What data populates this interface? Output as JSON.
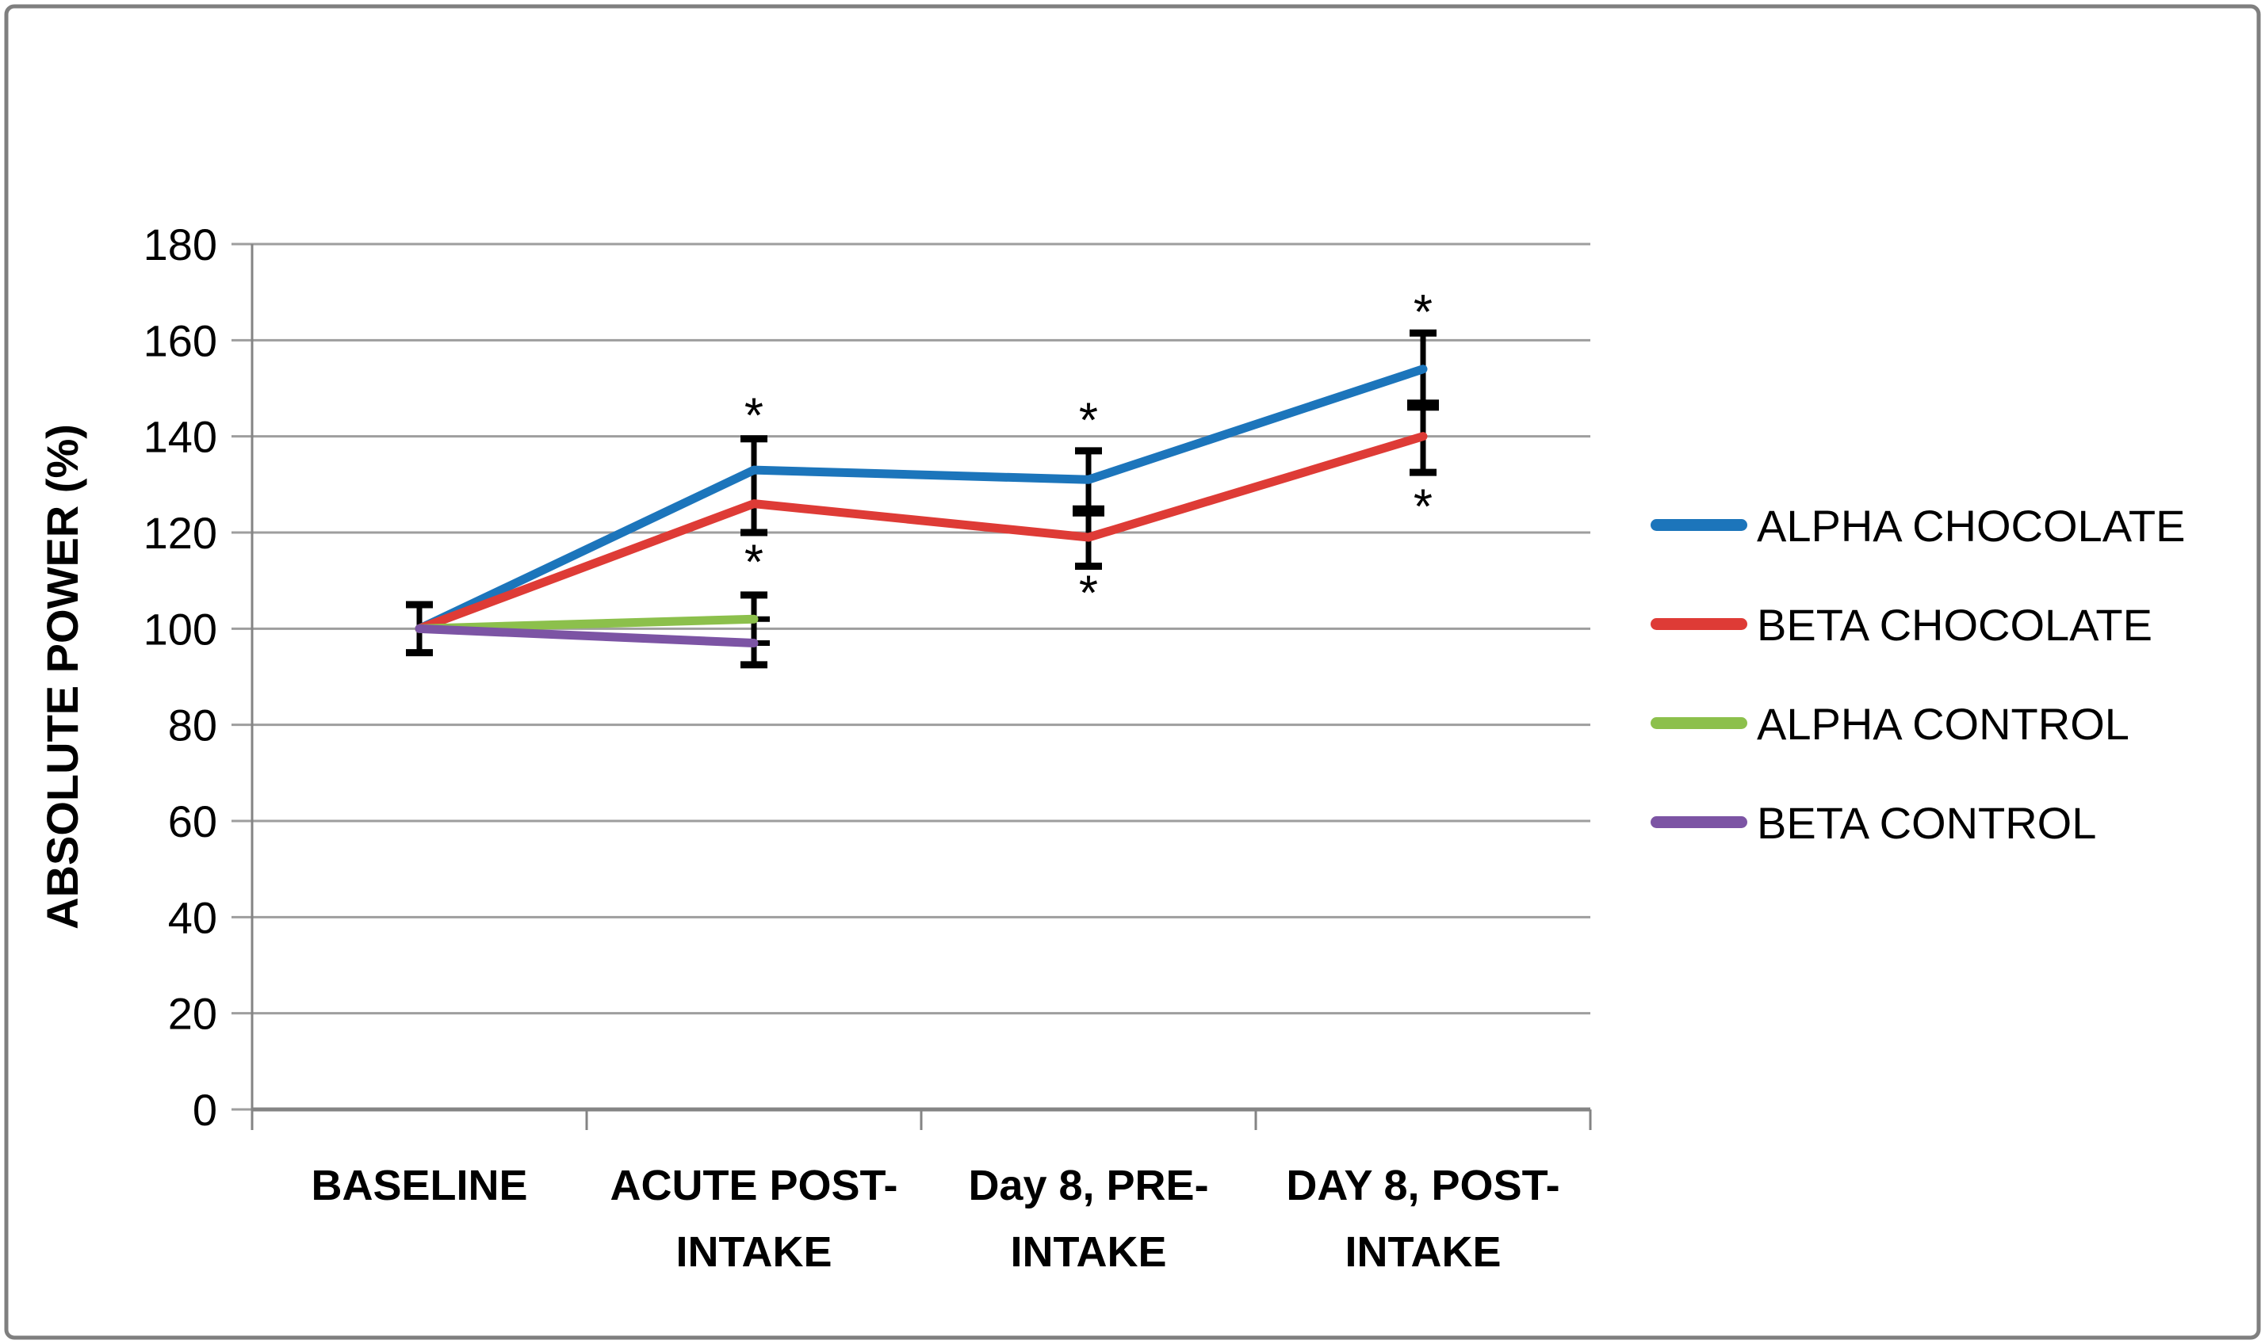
{
  "frame": {
    "background": "#FFFFFF",
    "border_color": "#7F7F7F"
  },
  "chart_data": {
    "type": "line",
    "title": "",
    "xlabel": "",
    "ylabel": "ABSOLUTE POWER (%)",
    "ylim": [
      0,
      180
    ],
    "yticks": [
      0,
      20,
      40,
      60,
      80,
      100,
      120,
      140,
      160,
      180
    ],
    "grid": true,
    "legend_position": "right",
    "categories": [
      "BASELINE",
      "ACUTE POST-INTAKE",
      "Day 8, PRE-INTAKE",
      "DAY 8, POST-INTAKE"
    ],
    "category_label_lines": [
      [
        "BASELINE"
      ],
      [
        "ACUTE POST-",
        "INTAKE"
      ],
      [
        "Day 8, PRE-",
        "INTAKE"
      ],
      [
        "DAY 8, POST-",
        "INTAKE"
      ]
    ],
    "series": [
      {
        "name": "ALPHA CHOCOLATE",
        "color": "#1C75BB",
        "values": [
          100,
          133,
          131,
          154
        ]
      },
      {
        "name": "BETA CHOCOLATE",
        "color": "#DE3B36",
        "values": [
          100,
          126,
          119,
          140
        ]
      },
      {
        "name": "ALPHA CONTROL",
        "color": "#8CC04C",
        "values": [
          100,
          102,
          null,
          null
        ]
      },
      {
        "name": "BETA CONTROL",
        "color": "#7C54A4",
        "values": [
          100,
          97,
          null,
          null
        ]
      }
    ],
    "error_bars": [
      {
        "category_index": 0,
        "top": 105,
        "bottom": 95,
        "mid_ticks": []
      },
      {
        "category_index": 1,
        "top": 139.5,
        "bottom": 120,
        "mid_ticks": []
      },
      {
        "category_index": 1,
        "top": 107,
        "bottom": 92.5,
        "mid_ticks": [
          {
            "value": 102,
            "style": "small"
          },
          {
            "value": 97,
            "style": "small"
          }
        ]
      },
      {
        "category_index": 2,
        "top": 137,
        "bottom": 113,
        "mid_ticks": [
          {
            "value": 124.5,
            "style": "bold"
          }
        ]
      },
      {
        "category_index": 3,
        "top": 161.5,
        "bottom": 132.5,
        "mid_ticks": [
          {
            "value": 146.5,
            "style": "bold"
          }
        ]
      }
    ],
    "annotations": [
      {
        "category_index": 1,
        "value": 146,
        "text": "*"
      },
      {
        "category_index": 1,
        "value": 115.5,
        "text": "*"
      },
      {
        "category_index": 2,
        "value": 145,
        "text": "*"
      },
      {
        "category_index": 2,
        "value": 109,
        "text": "*"
      },
      {
        "category_index": 3,
        "value": 167.5,
        "text": "*"
      },
      {
        "category_index": 3,
        "value": 127,
        "text": "*"
      }
    ],
    "colors": {
      "gridline": "#9E9E9E",
      "axis": "#848484",
      "error_bar": "#000000",
      "text": "#000000"
    }
  }
}
